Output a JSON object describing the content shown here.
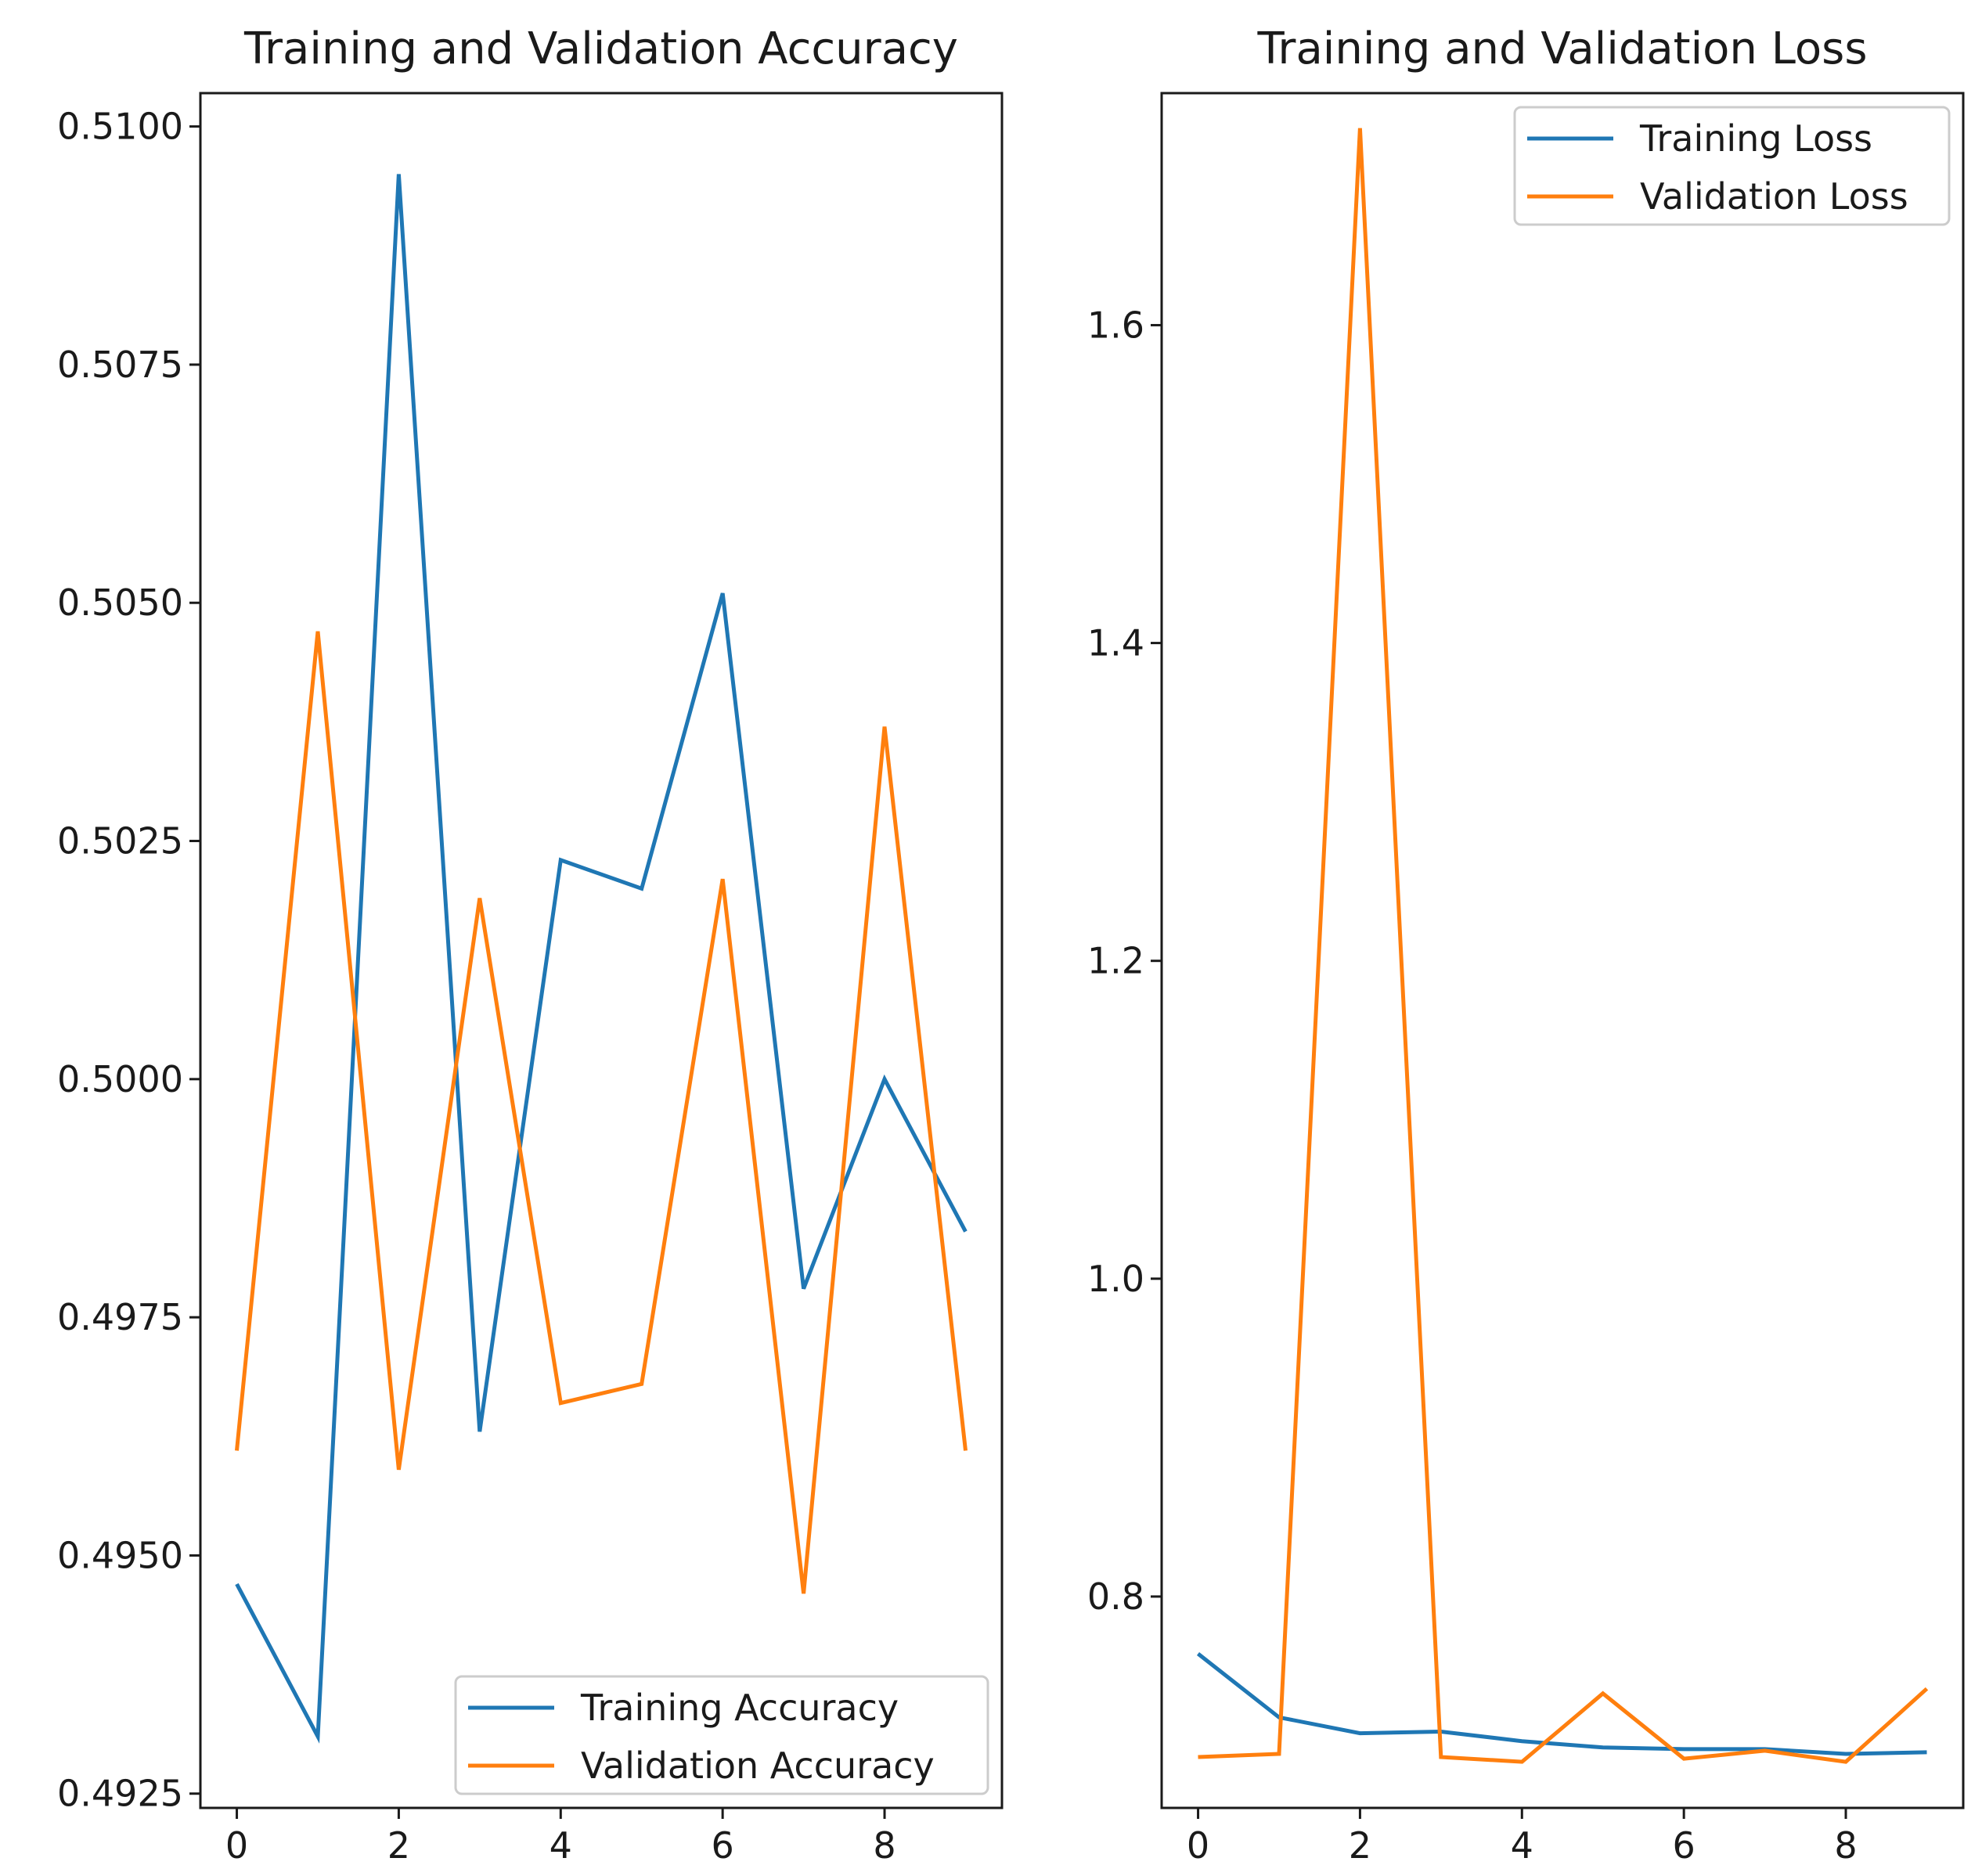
{
  "chart_data": [
    {
      "type": "line",
      "title": "Training and Validation Accuracy",
      "xlabel": "",
      "ylabel": "",
      "xlim": [
        -0.45,
        9.45
      ],
      "ylim": [
        0.49235,
        0.51035
      ],
      "xticks": [
        0,
        2,
        4,
        6,
        8
      ],
      "xtick_labels": [
        "0",
        "2",
        "4",
        "6",
        "8"
      ],
      "yticks": [
        0.4925,
        0.495,
        0.4975,
        0.5,
        0.5025,
        0.505,
        0.5075,
        0.51
      ],
      "ytick_labels": [
        "0.4925",
        "0.4950",
        "0.4975",
        "0.5000",
        "0.5025",
        "0.5050",
        "0.5075",
        "0.5100"
      ],
      "legend_position": "lower-right",
      "grid": false,
      "x": [
        0,
        1,
        2,
        3,
        4,
        5,
        6,
        7,
        8,
        9
      ],
      "series": [
        {
          "name": "Training Accuracy",
          "color": "#1f77b4",
          "values": [
            0.4947,
            0.4931,
            0.5095,
            0.4963,
            0.5023,
            0.502,
            0.5051,
            0.4978,
            0.5,
            0.4984
          ]
        },
        {
          "name": "Validation Accuracy",
          "color": "#ff7f0e",
          "values": [
            0.4961,
            0.5047,
            0.4959,
            0.5019,
            0.4966,
            0.4968,
            0.5021,
            0.4946,
            0.5037,
            0.4961
          ]
        }
      ]
    },
    {
      "type": "line",
      "title": "Training and Validation Loss",
      "xlabel": "",
      "ylabel": "",
      "xlim": [
        -0.45,
        9.45
      ],
      "ylim": [
        0.667,
        1.746
      ],
      "xticks": [
        0,
        2,
        4,
        6,
        8
      ],
      "xtick_labels": [
        "0",
        "2",
        "4",
        "6",
        "8"
      ],
      "yticks": [
        0.8,
        1.0,
        1.2,
        1.4,
        1.6
      ],
      "ytick_labels": [
        "0.8",
        "1.0",
        "1.2",
        "1.4",
        "1.6"
      ],
      "legend_position": "upper-right",
      "grid": false,
      "x": [
        0,
        1,
        2,
        3,
        4,
        5,
        6,
        7,
        8,
        9
      ],
      "series": [
        {
          "name": "Training Loss",
          "color": "#1f77b4",
          "values": [
            0.764,
            0.724,
            0.714,
            0.715,
            0.709,
            0.705,
            0.704,
            0.704,
            0.701,
            0.702
          ]
        },
        {
          "name": "Validation Loss",
          "color": "#ff7f0e",
          "values": [
            0.699,
            0.701,
            1.724,
            0.699,
            0.696,
            0.739,
            0.698,
            0.703,
            0.696,
            0.742
          ]
        }
      ]
    }
  ]
}
